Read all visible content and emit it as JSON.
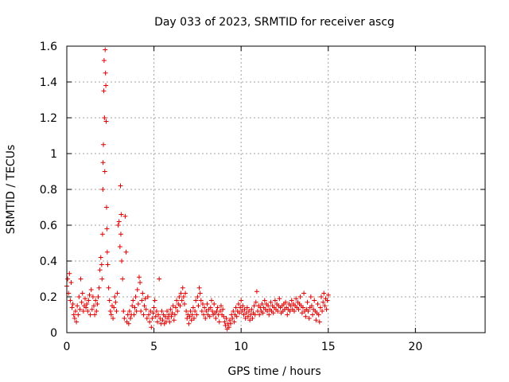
{
  "chart_data": {
    "type": "scatter",
    "title": "Day 033 of 2023, SRMTID for receiver ascg",
    "xlabel": "GPS time / hours",
    "ylabel": "SRMTID / TECUs",
    "xlim": [
      0,
      24
    ],
    "ylim": [
      0,
      1.6
    ],
    "xticks": [
      0,
      5,
      10,
      15,
      20
    ],
    "yticks": [
      0,
      0.2,
      0.4,
      0.6,
      0.8,
      1,
      1.2,
      1.4,
      1.6
    ],
    "xtick_labels": [
      "0",
      "5",
      "10",
      "15",
      "20"
    ],
    "ytick_labels": [
      "0",
      "0.2",
      "0.4",
      "0.6",
      "0.8",
      "1",
      "1.2",
      "1.4",
      "1.6"
    ],
    "grid": true,
    "marker": "+",
    "color": "#e00000",
    "series": [
      {
        "name": "SRMTID",
        "points": [
          [
            0.0,
            0.26
          ],
          [
            0.05,
            0.3
          ],
          [
            0.1,
            0.22
          ],
          [
            0.15,
            0.33
          ],
          [
            0.2,
            0.18
          ],
          [
            0.25,
            0.28
          ],
          [
            0.3,
            0.14
          ],
          [
            0.35,
            0.16
          ],
          [
            0.4,
            0.1
          ],
          [
            0.45,
            0.08
          ],
          [
            0.5,
            0.12
          ],
          [
            0.55,
            0.06
          ],
          [
            0.6,
            0.15
          ],
          [
            0.65,
            0.1
          ],
          [
            0.7,
            0.2
          ],
          [
            0.75,
            0.13
          ],
          [
            0.8,
            0.3
          ],
          [
            0.85,
            0.17
          ],
          [
            0.9,
            0.22
          ],
          [
            0.95,
            0.12
          ],
          [
            1.0,
            0.15
          ],
          [
            1.05,
            0.19
          ],
          [
            1.1,
            0.14
          ],
          [
            1.15,
            0.16
          ],
          [
            1.2,
            0.12
          ],
          [
            1.25,
            0.18
          ],
          [
            1.3,
            0.21
          ],
          [
            1.35,
            0.1
          ],
          [
            1.4,
            0.24
          ],
          [
            1.45,
            0.13
          ],
          [
            1.5,
            0.2
          ],
          [
            1.55,
            0.15
          ],
          [
            1.6,
            0.1
          ],
          [
            1.65,
            0.18
          ],
          [
            1.7,
            0.12
          ],
          [
            1.75,
            0.16
          ],
          [
            1.8,
            0.2
          ],
          [
            1.85,
            0.25
          ],
          [
            1.9,
            0.35
          ],
          [
            1.95,
            0.42
          ],
          [
            2.0,
            0.38
          ],
          [
            2.02,
            0.3
          ],
          [
            2.05,
            0.55
          ],
          [
            2.07,
            0.8
          ],
          [
            2.08,
            0.95
          ],
          [
            2.1,
            1.05
          ],
          [
            2.12,
            1.35
          ],
          [
            2.14,
            1.52
          ],
          [
            2.16,
            1.2
          ],
          [
            2.18,
            0.9
          ],
          [
            2.2,
            1.58
          ],
          [
            2.22,
            1.45
          ],
          [
            2.24,
            1.38
          ],
          [
            2.26,
            1.18
          ],
          [
            2.28,
            0.7
          ],
          [
            2.3,
            0.58
          ],
          [
            2.32,
            0.45
          ],
          [
            2.35,
            0.38
          ],
          [
            2.4,
            0.25
          ],
          [
            2.45,
            0.18
          ],
          [
            2.5,
            0.12
          ],
          [
            2.55,
            0.1
          ],
          [
            2.6,
            0.15
          ],
          [
            2.65,
            0.08
          ],
          [
            2.7,
            0.14
          ],
          [
            2.75,
            0.2
          ],
          [
            2.8,
            0.17
          ],
          [
            2.85,
            0.12
          ],
          [
            2.9,
            0.22
          ],
          [
            2.95,
            0.6
          ],
          [
            3.0,
            0.62
          ],
          [
            3.05,
            0.48
          ],
          [
            3.08,
            0.82
          ],
          [
            3.1,
            0.55
          ],
          [
            3.12,
            0.66
          ],
          [
            3.15,
            0.4
          ],
          [
            3.2,
            0.3
          ],
          [
            3.25,
            0.12
          ],
          [
            3.3,
            0.08
          ],
          [
            3.35,
            0.65
          ],
          [
            3.4,
            0.45
          ],
          [
            3.45,
            0.06
          ],
          [
            3.5,
            0.1
          ],
          [
            3.55,
            0.05
          ],
          [
            3.6,
            0.12
          ],
          [
            3.65,
            0.08
          ],
          [
            3.7,
            0.1
          ],
          [
            3.75,
            0.15
          ],
          [
            3.8,
            0.18
          ],
          [
            3.85,
            0.1
          ],
          [
            3.9,
            0.14
          ],
          [
            3.95,
            0.2
          ],
          [
            4.0,
            0.12
          ],
          [
            4.05,
            0.24
          ],
          [
            4.1,
            0.16
          ],
          [
            4.15,
            0.31
          ],
          [
            4.2,
            0.28
          ],
          [
            4.25,
            0.12
          ],
          [
            4.3,
            0.18
          ],
          [
            4.35,
            0.22
          ],
          [
            4.4,
            0.1
          ],
          [
            4.45,
            0.15
          ],
          [
            4.5,
            0.19
          ],
          [
            4.55,
            0.13
          ],
          [
            4.6,
            0.08
          ],
          [
            4.65,
            0.2
          ],
          [
            4.7,
            0.1
          ],
          [
            4.75,
            0.06
          ],
          [
            4.8,
            0.12
          ],
          [
            4.85,
            0.03
          ],
          [
            4.9,
            0.08
          ],
          [
            4.95,
            0.11
          ],
          [
            5.0,
            0.14
          ],
          [
            5.05,
            0.18
          ],
          [
            5.1,
            0.09
          ],
          [
            5.15,
            0.12
          ],
          [
            5.2,
            0.06
          ],
          [
            5.25,
            0.1
          ],
          [
            5.3,
            0.3
          ],
          [
            5.35,
            0.08
          ],
          [
            5.4,
            0.05
          ],
          [
            5.45,
            0.12
          ],
          [
            5.5,
            0.07
          ],
          [
            5.55,
            0.1
          ],
          [
            5.6,
            0.05
          ],
          [
            5.65,
            0.09
          ],
          [
            5.7,
            0.06
          ],
          [
            5.75,
            0.12
          ],
          [
            5.8,
            0.08
          ],
          [
            5.85,
            0.1
          ],
          [
            5.9,
            0.06
          ],
          [
            5.95,
            0.13
          ],
          [
            6.0,
            0.09
          ],
          [
            6.05,
            0.11
          ],
          [
            6.1,
            0.15
          ],
          [
            6.15,
            0.07
          ],
          [
            6.2,
            0.1
          ],
          [
            6.25,
            0.14
          ],
          [
            6.3,
            0.18
          ],
          [
            6.35,
            0.12
          ],
          [
            6.4,
            0.16
          ],
          [
            6.45,
            0.2
          ],
          [
            6.5,
            0.15
          ],
          [
            6.55,
            0.22
          ],
          [
            6.6,
            0.18
          ],
          [
            6.65,
            0.25
          ],
          [
            6.7,
            0.2
          ],
          [
            6.75,
            0.16
          ],
          [
            6.8,
            0.22
          ],
          [
            6.85,
            0.12
          ],
          [
            6.9,
            0.08
          ],
          [
            6.95,
            0.1
          ],
          [
            7.0,
            0.05
          ],
          [
            7.05,
            0.09
          ],
          [
            7.1,
            0.12
          ],
          [
            7.15,
            0.07
          ],
          [
            7.2,
            0.1
          ],
          [
            7.25,
            0.14
          ],
          [
            7.3,
            0.08
          ],
          [
            7.35,
            0.12
          ],
          [
            7.4,
            0.18
          ],
          [
            7.45,
            0.1
          ],
          [
            7.5,
            0.2
          ],
          [
            7.55,
            0.15
          ],
          [
            7.6,
            0.25
          ],
          [
            7.65,
            0.22
          ],
          [
            7.7,
            0.18
          ],
          [
            7.75,
            0.12
          ],
          [
            7.8,
            0.16
          ],
          [
            7.85,
            0.1
          ],
          [
            7.9,
            0.14
          ],
          [
            7.95,
            0.08
          ],
          [
            8.0,
            0.12
          ],
          [
            8.05,
            0.16
          ],
          [
            8.1,
            0.1
          ],
          [
            8.15,
            0.13
          ],
          [
            8.2,
            0.09
          ],
          [
            8.25,
            0.14
          ],
          [
            8.3,
            0.18
          ],
          [
            8.35,
            0.12
          ],
          [
            8.4,
            0.1
          ],
          [
            8.45,
            0.16
          ],
          [
            8.5,
            0.11
          ],
          [
            8.55,
            0.08
          ],
          [
            8.6,
            0.12
          ],
          [
            8.65,
            0.14
          ],
          [
            8.7,
            0.1
          ],
          [
            8.75,
            0.06
          ],
          [
            8.8,
            0.12
          ],
          [
            8.85,
            0.15
          ],
          [
            8.9,
            0.1
          ],
          [
            8.95,
            0.13
          ],
          [
            9.0,
            0.09
          ],
          [
            9.05,
            0.06
          ],
          [
            9.1,
            0.04
          ],
          [
            9.15,
            0.08
          ],
          [
            9.2,
            0.02
          ],
          [
            9.25,
            0.05
          ],
          [
            9.3,
            0.03
          ],
          [
            9.35,
            0.07
          ],
          [
            9.4,
            0.05
          ],
          [
            9.45,
            0.1
          ],
          [
            9.5,
            0.08
          ],
          [
            9.55,
            0.12
          ],
          [
            9.6,
            0.06
          ],
          [
            9.65,
            0.1
          ],
          [
            9.7,
            0.14
          ],
          [
            9.75,
            0.09
          ],
          [
            9.8,
            0.12
          ],
          [
            9.85,
            0.16
          ],
          [
            9.9,
            0.11
          ],
          [
            9.95,
            0.14
          ],
          [
            10.0,
            0.18
          ],
          [
            10.05,
            0.12
          ],
          [
            10.1,
            0.15
          ],
          [
            10.15,
            0.1
          ],
          [
            10.2,
            0.13
          ],
          [
            10.25,
            0.08
          ],
          [
            10.3,
            0.11
          ],
          [
            10.35,
            0.14
          ],
          [
            10.4,
            0.09
          ],
          [
            10.45,
            0.12
          ],
          [
            10.5,
            0.07
          ],
          [
            10.55,
            0.1
          ],
          [
            10.6,
            0.13
          ],
          [
            10.65,
            0.08
          ],
          [
            10.7,
            0.11
          ],
          [
            10.75,
            0.15
          ],
          [
            10.8,
            0.1
          ],
          [
            10.85,
            0.17
          ],
          [
            10.9,
            0.23
          ],
          [
            10.95,
            0.12
          ],
          [
            11.0,
            0.15
          ],
          [
            11.05,
            0.1
          ],
          [
            11.1,
            0.14
          ],
          [
            11.15,
            0.12
          ],
          [
            11.2,
            0.16
          ],
          [
            11.25,
            0.11
          ],
          [
            11.3,
            0.14
          ],
          [
            11.35,
            0.18
          ],
          [
            11.4,
            0.13
          ],
          [
            11.45,
            0.16
          ],
          [
            11.5,
            0.12
          ],
          [
            11.55,
            0.15
          ],
          [
            11.6,
            0.1
          ],
          [
            11.65,
            0.13
          ],
          [
            11.7,
            0.17
          ],
          [
            11.75,
            0.12
          ],
          [
            11.8,
            0.15
          ],
          [
            11.85,
            0.11
          ],
          [
            11.9,
            0.14
          ],
          [
            11.95,
            0.18
          ],
          [
            12.0,
            0.13
          ],
          [
            12.05,
            0.16
          ],
          [
            12.1,
            0.12
          ],
          [
            12.15,
            0.15
          ],
          [
            12.2,
            0.19
          ],
          [
            12.25,
            0.14
          ],
          [
            12.3,
            0.11
          ],
          [
            12.35,
            0.15
          ],
          [
            12.4,
            0.12
          ],
          [
            12.45,
            0.16
          ],
          [
            12.5,
            0.13
          ],
          [
            12.55,
            0.17
          ],
          [
            12.6,
            0.14
          ],
          [
            12.65,
            0.1
          ],
          [
            12.7,
            0.13
          ],
          [
            12.75,
            0.16
          ],
          [
            12.8,
            0.12
          ],
          [
            12.85,
            0.15
          ],
          [
            12.9,
            0.18
          ],
          [
            12.95,
            0.13
          ],
          [
            13.0,
            0.16
          ],
          [
            13.05,
            0.12
          ],
          [
            13.1,
            0.15
          ],
          [
            13.15,
            0.19
          ],
          [
            13.2,
            0.14
          ],
          [
            13.25,
            0.17
          ],
          [
            13.3,
            0.13
          ],
          [
            13.35,
            0.16
          ],
          [
            13.4,
            0.2
          ],
          [
            13.45,
            0.15
          ],
          [
            13.5,
            0.11
          ],
          [
            13.55,
            0.14
          ],
          [
            13.6,
            0.22
          ],
          [
            13.65,
            0.12
          ],
          [
            13.7,
            0.09
          ],
          [
            13.75,
            0.13
          ],
          [
            13.8,
            0.17
          ],
          [
            13.85,
            0.12
          ],
          [
            13.9,
            0.08
          ],
          [
            13.95,
            0.14
          ],
          [
            14.0,
            0.2
          ],
          [
            14.05,
            0.15
          ],
          [
            14.1,
            0.1
          ],
          [
            14.15,
            0.13
          ],
          [
            14.2,
            0.18
          ],
          [
            14.25,
            0.12
          ],
          [
            14.3,
            0.07
          ],
          [
            14.35,
            0.11
          ],
          [
            14.4,
            0.16
          ],
          [
            14.45,
            0.1
          ],
          [
            14.5,
            0.06
          ],
          [
            14.55,
            0.14
          ],
          [
            14.6,
            0.2
          ],
          [
            14.65,
            0.12
          ],
          [
            14.7,
            0.17
          ],
          [
            14.75,
            0.22
          ],
          [
            14.8,
            0.15
          ],
          [
            14.85,
            0.19
          ],
          [
            14.9,
            0.13
          ],
          [
            14.95,
            0.18
          ],
          [
            15.0,
            0.21
          ]
        ]
      }
    ]
  }
}
